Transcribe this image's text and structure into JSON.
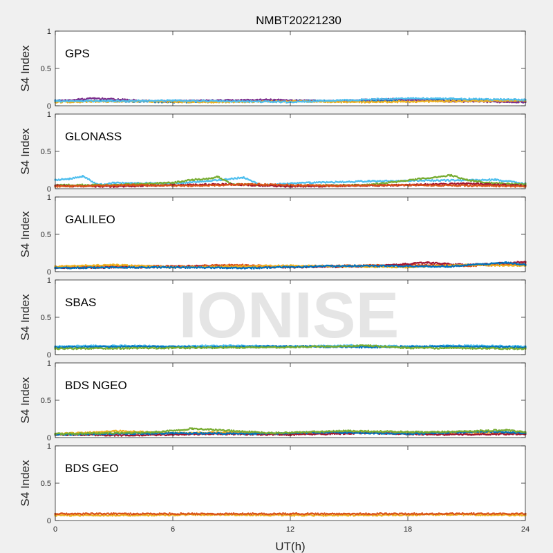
{
  "figure": {
    "title": "NMBT20221230",
    "xlabel": "UT(h)",
    "watermark": "IONISE"
  },
  "colors": {
    "background": "#f0f0f0",
    "axes_bg": "#ffffff",
    "series": [
      "#0072BD",
      "#D95319",
      "#EDB120",
      "#7E2F8E",
      "#77AC30",
      "#4DBEEE",
      "#A2142F"
    ]
  },
  "chart_data": {
    "type": "scatter",
    "x_range": [
      0,
      24
    ],
    "x_ticks": [
      0,
      6,
      12,
      18,
      24
    ],
    "x_tick_labels": [
      "0",
      "6",
      "12",
      "18",
      "24"
    ],
    "ylim": [
      0,
      1
    ],
    "y_ticks": [
      0,
      0.5,
      1
    ],
    "y_tick_labels": [
      "0",
      "0.5",
      "1"
    ],
    "ylabel": "S4 Index",
    "grid": false,
    "panels": [
      {
        "label": "GPS",
        "typical_s4": [
          0.04,
          0.09
        ],
        "series": [
          {
            "color_index": 0,
            "x": [
              0,
              3,
              6,
              9,
              12,
              15,
              18,
              21,
              24
            ],
            "y": [
              0.07,
              0.06,
              0.05,
              0.06,
              0.07,
              0.06,
              0.08,
              0.07,
              0.06
            ]
          },
          {
            "color_index": 3,
            "x": [
              0,
              2,
              5,
              8,
              11,
              14,
              17,
              20,
              24
            ],
            "y": [
              0.06,
              0.1,
              0.06,
              0.07,
              0.08,
              0.06,
              0.09,
              0.06,
              0.05
            ]
          },
          {
            "color_index": 2,
            "x": [
              0,
              4,
              8,
              12,
              16,
              20,
              24
            ],
            "y": [
              0.05,
              0.06,
              0.05,
              0.06,
              0.05,
              0.06,
              0.07
            ]
          },
          {
            "color_index": 5,
            "x": [
              0,
              6,
              12,
              18,
              24
            ],
            "y": [
              0.06,
              0.07,
              0.05,
              0.1,
              0.08
            ]
          }
        ]
      },
      {
        "label": "GLONASS",
        "typical_s4": [
          0.02,
          0.2
        ],
        "series": [
          {
            "color_index": 5,
            "x": [
              0,
              0.7,
              1.4,
              2.2,
              3,
              6,
              8.5,
              9.6,
              10.5,
              13,
              16,
              22.5,
              24
            ],
            "y": [
              0.12,
              0.13,
              0.17,
              0.05,
              0.08,
              0.07,
              0.12,
              0.15,
              0.05,
              0.08,
              0.1,
              0.12,
              0.07
            ]
          },
          {
            "color_index": 4,
            "x": [
              3,
              6,
              7,
              8,
              8.3,
              9,
              12,
              16,
              20.2,
              21,
              22,
              24
            ],
            "y": [
              0.05,
              0.08,
              0.12,
              0.14,
              0.16,
              0.06,
              0.04,
              0.05,
              0.18,
              0.12,
              0.08,
              0.06
            ]
          },
          {
            "color_index": 6,
            "x": [
              0,
              3,
              6,
              9,
              12,
              15,
              18,
              21,
              24
            ],
            "y": [
              0.04,
              0.03,
              0.05,
              0.06,
              0.03,
              0.04,
              0.05,
              0.07,
              0.04
            ]
          },
          {
            "color_index": 1,
            "x": [
              0,
              4,
              7,
              10,
              14,
              18,
              22,
              24
            ],
            "y": [
              0.03,
              0.05,
              0.04,
              0.06,
              0.04,
              0.05,
              0.04,
              0.03
            ]
          }
        ]
      },
      {
        "label": "GALILEO",
        "typical_s4": [
          0.04,
          0.14
        ],
        "series": [
          {
            "color_index": 1,
            "x": [
              0,
              3,
              6,
              9,
              12,
              15,
              18,
              21,
              24
            ],
            "y": [
              0.06,
              0.08,
              0.07,
              0.09,
              0.07,
              0.08,
              0.09,
              0.08,
              0.1
            ]
          },
          {
            "color_index": 6,
            "x": [
              0,
              4,
              8,
              12,
              16,
              19,
              21,
              24
            ],
            "y": [
              0.05,
              0.06,
              0.07,
              0.06,
              0.07,
              0.12,
              0.09,
              0.13
            ]
          },
          {
            "color_index": 2,
            "x": [
              0,
              3,
              6,
              9,
              12,
              15,
              18,
              21,
              24
            ],
            "y": [
              0.07,
              0.09,
              0.06,
              0.07,
              0.08,
              0.07,
              0.06,
              0.09,
              0.08
            ]
          },
          {
            "color_index": 0,
            "x": [
              0,
              5,
              10,
              15,
              20,
              23,
              24
            ],
            "y": [
              0.05,
              0.06,
              0.05,
              0.08,
              0.07,
              0.12,
              0.09
            ]
          }
        ]
      },
      {
        "label": "SBAS",
        "typical_s4": [
          0.07,
          0.15
        ],
        "series": [
          {
            "color_index": 5,
            "x": [
              0,
              3,
              6,
              9,
              12,
              15,
              18,
              21,
              24
            ],
            "y": [
              0.11,
              0.12,
              0.11,
              0.12,
              0.11,
              0.12,
              0.11,
              0.12,
              0.11
            ]
          },
          {
            "color_index": 0,
            "x": [
              0,
              4,
              8,
              12,
              16,
              20,
              24
            ],
            "y": [
              0.1,
              0.11,
              0.1,
              0.11,
              0.1,
              0.11,
              0.1
            ]
          },
          {
            "color_index": 4,
            "x": [
              0,
              6,
              12,
              16,
              18,
              24
            ],
            "y": [
              0.08,
              0.09,
              0.1,
              0.12,
              0.09,
              0.08
            ]
          }
        ]
      },
      {
        "label": "BDS NGEO",
        "typical_s4": [
          0.03,
          0.12
        ],
        "series": [
          {
            "color_index": 2,
            "x": [
              0,
              2,
              3,
              6,
              9,
              12,
              15,
              18,
              21,
              24
            ],
            "y": [
              0.05,
              0.07,
              0.09,
              0.06,
              0.07,
              0.05,
              0.08,
              0.06,
              0.07,
              0.06
            ]
          },
          {
            "color_index": 6,
            "x": [
              0,
              4,
              8,
              12,
              16,
              20,
              24
            ],
            "y": [
              0.04,
              0.03,
              0.05,
              0.04,
              0.06,
              0.04,
              0.05
            ]
          },
          {
            "color_index": 0,
            "x": [
              0,
              6,
              10,
              14,
              18,
              22,
              24
            ],
            "y": [
              0.04,
              0.06,
              0.05,
              0.07,
              0.05,
              0.08,
              0.06
            ]
          },
          {
            "color_index": 4,
            "x": [
              0,
              5,
              7,
              11,
              15,
              19,
              23,
              24
            ],
            "y": [
              0.05,
              0.07,
              0.12,
              0.06,
              0.09,
              0.07,
              0.1,
              0.07
            ]
          }
        ]
      },
      {
        "label": "BDS GEO",
        "typical_s4": [
          0.07,
          0.1
        ],
        "series": [
          {
            "color_index": 2,
            "x": [
              0,
              4,
              8,
              12,
              16,
              20,
              24
            ],
            "y": [
              0.07,
              0.07,
              0.08,
              0.07,
              0.07,
              0.08,
              0.07
            ]
          },
          {
            "color_index": 1,
            "x": [
              0,
              4,
              8,
              12,
              16,
              20,
              24
            ],
            "y": [
              0.09,
              0.09,
              0.09,
              0.09,
              0.09,
              0.09,
              0.09
            ]
          }
        ]
      }
    ]
  }
}
